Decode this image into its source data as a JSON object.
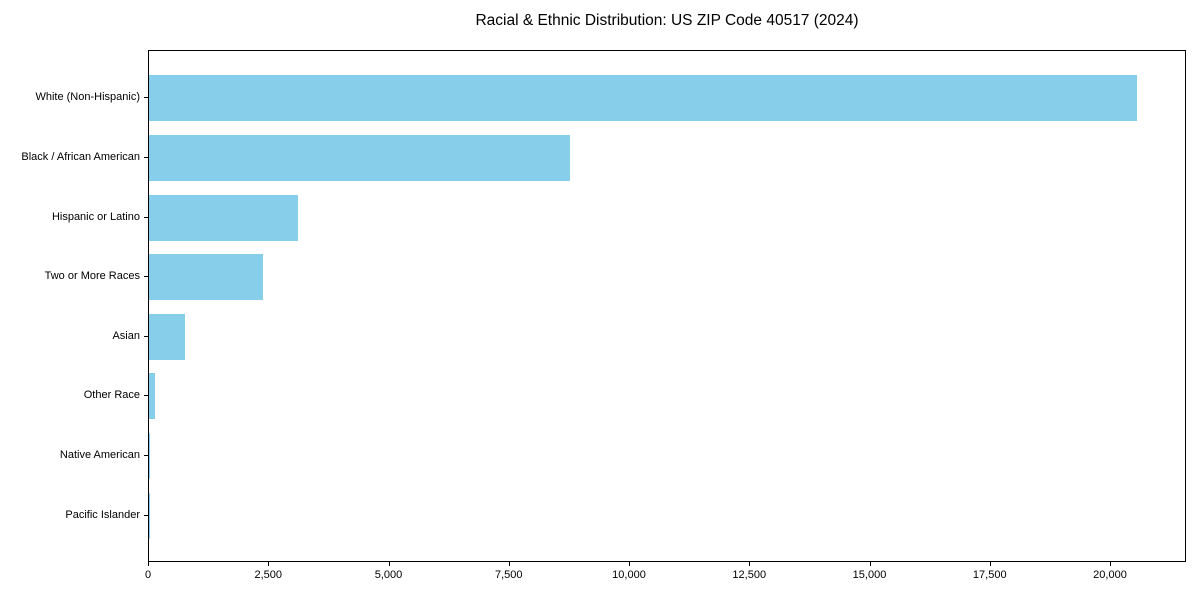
{
  "chart_data": {
    "type": "bar",
    "orientation": "horizontal",
    "title": "Racial & Ethnic Distribution: US ZIP Code 40517 (2024)",
    "categories": [
      "White (Non-Hispanic)",
      "Black / African American",
      "Hispanic or Latino",
      "Two or More Races",
      "Asian",
      "Other Race",
      "Native American",
      "Pacific Islander"
    ],
    "values": [
      20550,
      8750,
      3100,
      2380,
      740,
      130,
      20,
      10
    ],
    "xlabel": "",
    "ylabel": "",
    "xlim": [
      0,
      21580
    ],
    "xticks": [
      0,
      2500,
      5000,
      7500,
      10000,
      12500,
      15000,
      17500,
      20000
    ],
    "xtick_labels": [
      "0",
      "2,500",
      "5,000",
      "7,500",
      "10,000",
      "12,500",
      "15,000",
      "17,500",
      "20,000"
    ],
    "bar_color": "#87CEEB",
    "grid": false,
    "legend": null
  }
}
